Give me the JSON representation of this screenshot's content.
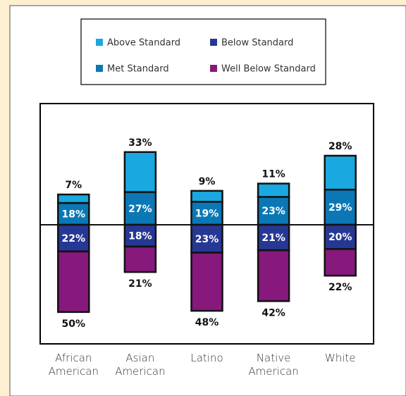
{
  "chart_data": {
    "type": "diverging-stacked-bar",
    "categories": [
      "African American",
      "Asian American",
      "Latino",
      "Native American",
      "White"
    ],
    "series": [
      {
        "name": "Above Standard",
        "color": "#1aa8e0",
        "side": "up",
        "values": [
          7,
          33,
          9,
          11,
          28
        ],
        "value_labels": [
          "7%",
          "33%",
          "9%",
          "11%",
          "28%"
        ]
      },
      {
        "name": "Met Standard",
        "color": "#0b78b5",
        "side": "up",
        "values": [
          18,
          27,
          19,
          23,
          29
        ],
        "value_labels": [
          "18%",
          "27%",
          "19%",
          "23%",
          "29%"
        ]
      },
      {
        "name": "Below Standard",
        "color": "#263894",
        "side": "down",
        "values": [
          22,
          18,
          23,
          21,
          20
        ],
        "value_labels": [
          "22%",
          "18%",
          "23%",
          "21%",
          "20%"
        ]
      },
      {
        "name": "Well Below Standard",
        "color": "#86197b",
        "side": "down",
        "values": [
          50,
          21,
          48,
          42,
          22
        ],
        "value_labels": [
          "50%",
          "21%",
          "48%",
          "42%",
          "22%"
        ]
      }
    ],
    "stack_order_up": [
      1,
      0
    ],
    "stack_order_down": [
      2,
      3
    ],
    "ylim": [
      -100,
      100
    ],
    "legend": "top"
  }
}
